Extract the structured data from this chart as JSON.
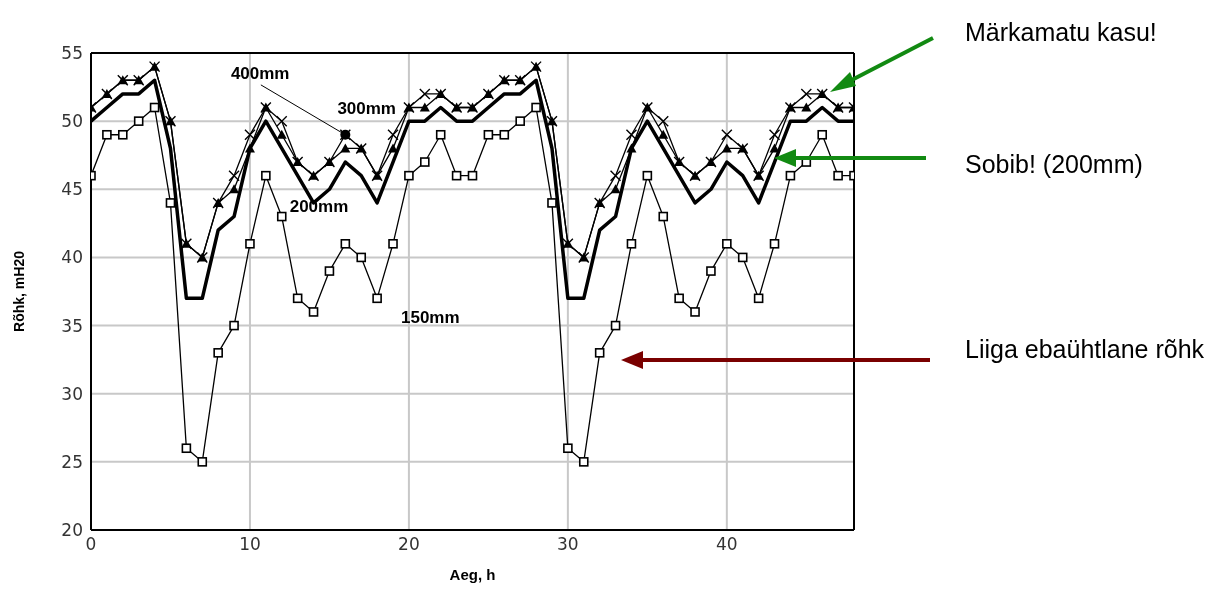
{
  "chart_data": {
    "type": "line",
    "xlabel": "Aeg, h",
    "ylabel": "Rõhk, mH20",
    "x": [
      0,
      1,
      2,
      3,
      4,
      5,
      6,
      7,
      8,
      9,
      10,
      11,
      12,
      13,
      14,
      15,
      16,
      17,
      18,
      19,
      20,
      21,
      22,
      23,
      24,
      25,
      26,
      27,
      28,
      29,
      30,
      31,
      32,
      33,
      34,
      35,
      36,
      37,
      38,
      39,
      40,
      41,
      42,
      43,
      44,
      45,
      46,
      47,
      48
    ],
    "series": [
      {
        "name": "150mm",
        "color": "#000000",
        "marker": "square",
        "values": [
          46,
          49,
          49,
          50,
          51,
          44,
          26,
          25,
          33,
          35,
          41,
          46,
          43,
          37,
          36,
          39,
          41,
          40,
          37,
          41,
          46,
          47,
          49,
          46,
          46,
          49,
          49,
          50,
          51,
          44,
          26,
          25,
          33,
          35,
          41,
          46,
          43,
          37,
          36,
          39,
          41,
          40,
          37,
          41,
          46,
          47,
          49,
          46,
          46
        ]
      },
      {
        "name": "200mm",
        "color": "#000000",
        "marker": "none",
        "values": [
          50,
          51,
          52,
          52,
          53,
          48,
          37,
          37,
          42,
          43,
          48,
          50,
          48,
          46,
          44,
          45,
          47,
          46,
          44,
          47,
          50,
          50,
          51,
          50,
          50,
          51,
          52,
          52,
          53,
          48,
          37,
          37,
          42,
          43,
          48,
          50,
          48,
          46,
          44,
          45,
          47,
          46,
          44,
          47,
          50,
          50,
          51,
          50,
          50
        ]
      },
      {
        "name": "400mm",
        "color": "#000000",
        "marker": "cross",
        "values": [
          51,
          52,
          53,
          53,
          54,
          50,
          41,
          40,
          44,
          46,
          49,
          51,
          50,
          47,
          46,
          47,
          49,
          48,
          46,
          49,
          51,
          52,
          52,
          51,
          51,
          52,
          53,
          53,
          54,
          50,
          41,
          40,
          44,
          46,
          49,
          51,
          50,
          47,
          46,
          47,
          49,
          48,
          46,
          49,
          51,
          52,
          52,
          51,
          51
        ]
      },
      {
        "name": "300mm",
        "color": "#000000",
        "marker": "triangle",
        "values": [
          51,
          52,
          53,
          53,
          54,
          50,
          41,
          40,
          44,
          45,
          48,
          51,
          49,
          47,
          46,
          47,
          48,
          48,
          46,
          48,
          51,
          51,
          52,
          51,
          51,
          52,
          53,
          53,
          54,
          50,
          41,
          40,
          44,
          45,
          48,
          51,
          49,
          47,
          46,
          47,
          48,
          48,
          46,
          48,
          51,
          51,
          52,
          51,
          51
        ]
      }
    ],
    "xlim": [
      0,
      48
    ],
    "xticks": [
      0,
      10,
      20,
      30,
      40
    ],
    "ylim": [
      20,
      55
    ],
    "yticks": [
      20,
      25,
      30,
      35,
      40,
      45,
      50,
      55
    ],
    "grid": true,
    "annotations": [
      "Märkamatu kasu!",
      "Sobib! (200mm)",
      "Liiga ebaühtlane rõhk"
    ]
  }
}
